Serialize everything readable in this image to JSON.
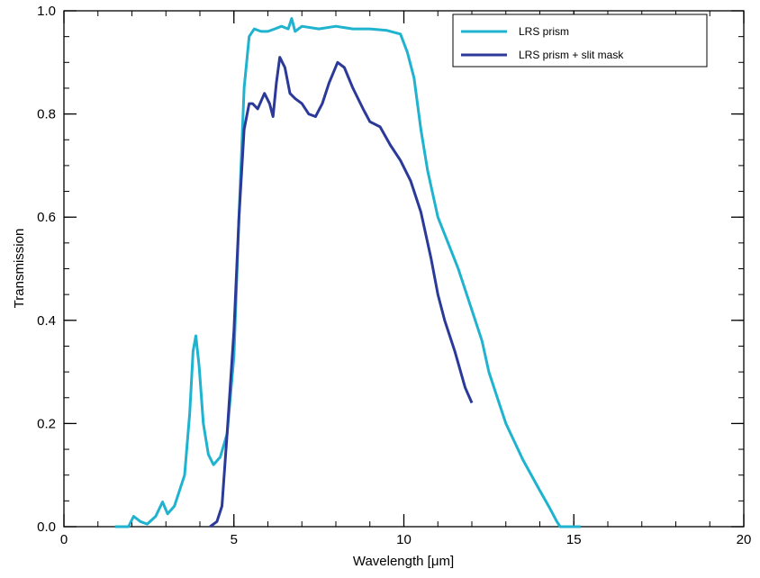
{
  "chart_data": {
    "type": "line",
    "title": "",
    "xlabel": "Wavelength [μm]",
    "ylabel": "Transmission",
    "xlim": [
      0,
      20
    ],
    "ylim": [
      0,
      1.0
    ],
    "x_ticks": [
      "0",
      "5",
      "10",
      "15",
      "20"
    ],
    "y_ticks": [
      "0.0",
      "0.2",
      "0.4",
      "0.6",
      "0.8",
      "1.0"
    ],
    "x_minor_step": 1,
    "y_minor_step": 0.05,
    "grid": false,
    "legend_position": "top-right",
    "series": [
      {
        "name": "LRS prism",
        "color": "#1fb3cf",
        "points": [
          [
            1.5,
            0.0
          ],
          [
            1.9,
            0.0
          ],
          [
            2.05,
            0.02
          ],
          [
            2.25,
            0.01
          ],
          [
            2.45,
            0.005
          ],
          [
            2.7,
            0.02
          ],
          [
            2.9,
            0.048
          ],
          [
            3.05,
            0.025
          ],
          [
            3.25,
            0.04
          ],
          [
            3.55,
            0.1
          ],
          [
            3.7,
            0.22
          ],
          [
            3.8,
            0.34
          ],
          [
            3.88,
            0.37
          ],
          [
            3.98,
            0.31
          ],
          [
            4.1,
            0.2
          ],
          [
            4.25,
            0.14
          ],
          [
            4.4,
            0.12
          ],
          [
            4.6,
            0.135
          ],
          [
            4.8,
            0.18
          ],
          [
            5.0,
            0.33
          ],
          [
            5.15,
            0.6
          ],
          [
            5.3,
            0.85
          ],
          [
            5.45,
            0.95
          ],
          [
            5.6,
            0.965
          ],
          [
            5.8,
            0.96
          ],
          [
            6.0,
            0.96
          ],
          [
            6.2,
            0.965
          ],
          [
            6.4,
            0.97
          ],
          [
            6.6,
            0.965
          ],
          [
            6.7,
            0.985
          ],
          [
            6.8,
            0.96
          ],
          [
            7.0,
            0.97
          ],
          [
            7.5,
            0.965
          ],
          [
            8.0,
            0.97
          ],
          [
            8.5,
            0.965
          ],
          [
            9.0,
            0.965
          ],
          [
            9.5,
            0.962
          ],
          [
            9.9,
            0.955
          ],
          [
            10.1,
            0.92
          ],
          [
            10.3,
            0.87
          ],
          [
            10.5,
            0.77
          ],
          [
            10.7,
            0.69
          ],
          [
            11.0,
            0.6
          ],
          [
            11.3,
            0.55
          ],
          [
            11.6,
            0.5
          ],
          [
            12.0,
            0.42
          ],
          [
            12.3,
            0.36
          ],
          [
            12.5,
            0.3
          ],
          [
            12.8,
            0.24
          ],
          [
            13.0,
            0.2
          ],
          [
            13.5,
            0.13
          ],
          [
            14.0,
            0.07
          ],
          [
            14.3,
            0.035
          ],
          [
            14.5,
            0.01
          ],
          [
            14.6,
            0.0
          ],
          [
            15.0,
            0.0
          ],
          [
            15.2,
            0.0
          ]
        ]
      },
      {
        "name": "LRS prism + slit mask",
        "color": "#2b3a99",
        "points": [
          [
            4.3,
            0.0
          ],
          [
            4.5,
            0.01
          ],
          [
            4.65,
            0.04
          ],
          [
            4.8,
            0.18
          ],
          [
            5.0,
            0.38
          ],
          [
            5.15,
            0.6
          ],
          [
            5.3,
            0.77
          ],
          [
            5.45,
            0.82
          ],
          [
            5.55,
            0.82
          ],
          [
            5.7,
            0.81
          ],
          [
            5.9,
            0.84
          ],
          [
            6.05,
            0.82
          ],
          [
            6.15,
            0.795
          ],
          [
            6.25,
            0.86
          ],
          [
            6.35,
            0.91
          ],
          [
            6.5,
            0.89
          ],
          [
            6.65,
            0.84
          ],
          [
            6.8,
            0.83
          ],
          [
            7.0,
            0.82
          ],
          [
            7.2,
            0.8
          ],
          [
            7.4,
            0.795
          ],
          [
            7.6,
            0.82
          ],
          [
            7.8,
            0.86
          ],
          [
            8.05,
            0.9
          ],
          [
            8.25,
            0.89
          ],
          [
            8.5,
            0.85
          ],
          [
            8.8,
            0.81
          ],
          [
            9.0,
            0.785
          ],
          [
            9.3,
            0.775
          ],
          [
            9.6,
            0.74
          ],
          [
            9.9,
            0.71
          ],
          [
            10.2,
            0.67
          ],
          [
            10.5,
            0.61
          ],
          [
            10.8,
            0.52
          ],
          [
            11.0,
            0.45
          ],
          [
            11.2,
            0.4
          ],
          [
            11.5,
            0.34
          ],
          [
            11.8,
            0.27
          ],
          [
            12.0,
            0.24
          ]
        ]
      }
    ]
  }
}
